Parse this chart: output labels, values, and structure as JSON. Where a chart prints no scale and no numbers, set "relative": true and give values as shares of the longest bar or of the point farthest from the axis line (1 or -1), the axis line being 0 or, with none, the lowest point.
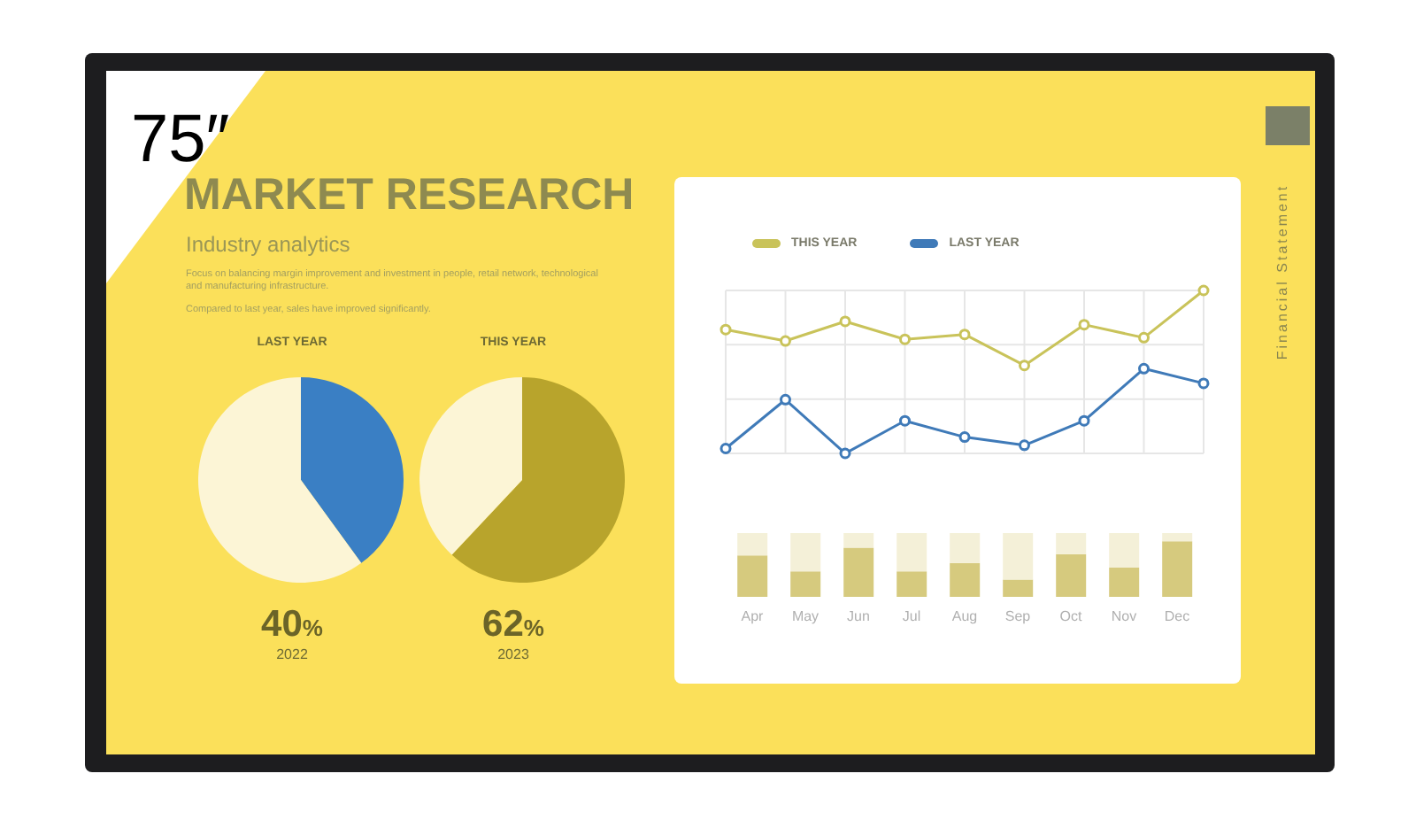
{
  "chart_data": [
    {
      "type": "other",
      "title": "MARKET RESEARCH",
      "subtitle": "Industry analytics",
      "annotations": [
        "Focus on balancing margin improvement and investment in people, retail network, technological and manufacturing infrastructure.",
        "Compared to last year, sales have improved significantly.",
        "75″",
        "Financial Statement"
      ]
    },
    {
      "type": "pie",
      "title": "LAST YEAR",
      "categories": [
        null,
        null
      ],
      "values": [
        40,
        60
      ],
      "colors": [
        "#3a7fc4",
        "#fcf5d6"
      ],
      "annotations": [
        "40%",
        "2022"
      ]
    },
    {
      "type": "pie",
      "title": "THIS YEAR",
      "categories": [
        null,
        null
      ],
      "values": [
        62,
        38
      ],
      "colors": [
        "#b8a42c",
        "#fcf5d6"
      ],
      "annotations": [
        "62%",
        "2023"
      ]
    },
    {
      "type": "line",
      "relative": true,
      "grid": true,
      "legend": "top left",
      "marker": "circle",
      "categories": [
        null,
        null,
        null,
        null,
        null,
        null,
        null,
        null,
        null
      ],
      "series": [
        {
          "name": "THIS YEAR",
          "color": "#c9c35a",
          "values": [
            0.76,
            0.69,
            0.81,
            0.7,
            0.73,
            0.54,
            0.79,
            0.71,
            1
          ]
        },
        {
          "name": "LAST YEAR",
          "color": "#3f7ab8",
          "values": [
            0.03,
            0.33,
            0,
            0.2,
            0.1,
            0.05,
            0.2,
            0.52,
            0.43
          ]
        }
      ]
    },
    {
      "type": "bar",
      "relative": true,
      "stacked": true,
      "categories": [
        "Apr",
        "May",
        "Jun",
        "Jul",
        "Aug",
        "Sep",
        "Oct",
        "Nov",
        "Dec"
      ],
      "series": [
        {
          "color": "#d6ca7e",
          "values": [
            0.65,
            0.4,
            0.77,
            0.4,
            0.53,
            0.27,
            0.67,
            0.46,
            0.87
          ]
        },
        {
          "color": "#f4f0d8",
          "values": [
            0.35,
            0.6,
            0.23,
            0.6,
            0.47,
            0.73,
            0.33,
            0.54,
            0.13
          ]
        }
      ]
    }
  ]
}
